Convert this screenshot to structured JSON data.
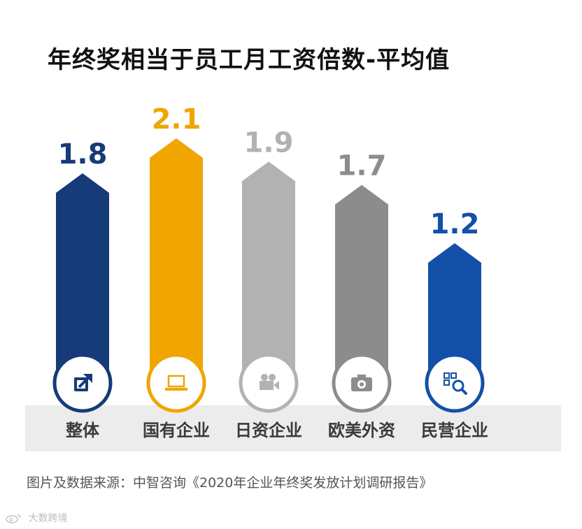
{
  "title": "年终奖相当于员工月工资倍数-平均值",
  "source": "图片及数据来源：中智咨询《2020年企业年终奖发放计划调研报告》",
  "watermark": "大数跨境",
  "chart_data": {
    "type": "bar",
    "title": "年终奖相当于员工月工资倍数-平均值",
    "categories": [
      "整体",
      "国有企业",
      "日资企业",
      "欧美外资",
      "民营企业"
    ],
    "values": [
      1.8,
      2.1,
      1.9,
      1.7,
      1.2
    ],
    "value_labels": [
      "1.8",
      "2.1",
      "1.9",
      "1.7",
      "1.2"
    ],
    "colors": [
      "#163b78",
      "#f0a500",
      "#b2b2b2",
      "#8c8c8c",
      "#1450a8"
    ],
    "icons": [
      "share-icon",
      "laptop-icon",
      "video-camera-icon",
      "camera-icon",
      "qr-search-icon"
    ],
    "xlabel": "",
    "ylabel": "",
    "grid": false,
    "legend": "none"
  }
}
